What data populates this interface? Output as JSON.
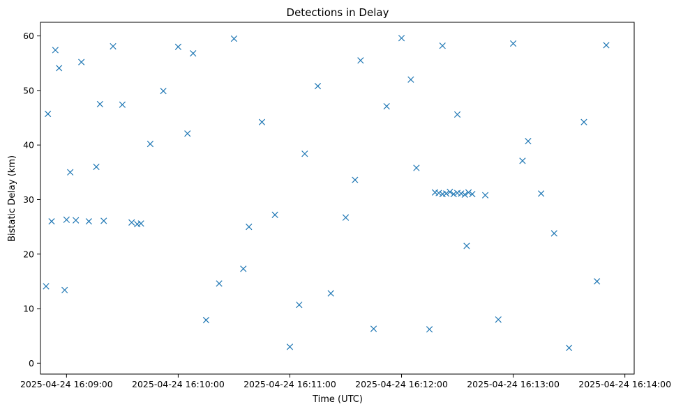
{
  "chart_data": {
    "type": "scatter",
    "title": "Detections in Delay",
    "xlabel": "Time (UTC)",
    "ylabel": "Bistatic Delay (km)",
    "marker": "x",
    "color": "#1f77b4",
    "x_ticks": [
      "2025-04-24 16:09:00",
      "2025-04-24 16:10:00",
      "2025-04-24 16:11:00",
      "2025-04-24 16:12:00",
      "2025-04-24 16:13:00",
      "2025-04-24 16:14:00"
    ],
    "xlim": [
      "2025-04-24 16:08:46",
      "2025-04-24 16:14:05"
    ],
    "y_ticks": [
      0,
      10,
      20,
      30,
      40,
      50,
      60
    ],
    "ylim": [
      -2,
      62.5
    ],
    "grid": false,
    "x": [
      "2025-04-24 16:08:49",
      "2025-04-24 16:08:50",
      "2025-04-24 16:08:52",
      "2025-04-24 16:08:54",
      "2025-04-24 16:08:56",
      "2025-04-24 16:08:59",
      "2025-04-24 16:09:02",
      "2025-04-24 16:09:05",
      "2025-04-24 16:09:08",
      "2025-04-24 16:09:12",
      "2025-04-24 16:09:16",
      "2025-04-24 16:09:20",
      "2025-04-24 16:09:25",
      "2025-04-24 16:09:30",
      "2025-04-24 16:09:35",
      "2025-04-24 16:09:40",
      "2025-04-24 16:09:45",
      "2025-04-24 16:09:52",
      "2025-04-24 16:10:00",
      "2025-04-24 16:10:08",
      "2025-04-24 16:10:15",
      "2025-04-24 16:10:22",
      "2025-04-24 16:10:30",
      "2025-04-24 16:10:38",
      "2025-04-24 16:10:45",
      "2025-04-24 16:10:52",
      "2025-04-24 16:11:00",
      "2025-04-24 16:11:08",
      "2025-04-24 16:11:15",
      "2025-04-24 16:11:22",
      "2025-04-24 16:11:30",
      "2025-04-24 16:11:38",
      "2025-04-24 16:11:45",
      "2025-04-24 16:11:52",
      "2025-04-24 16:12:00",
      "2025-04-24 16:12:08",
      "2025-04-24 16:12:15",
      "2025-04-24 16:12:22",
      "2025-04-24 16:12:30",
      "2025-04-24 16:12:38",
      "2025-04-24 16:12:45",
      "2025-04-24 16:12:52",
      "2025-04-24 16:13:00",
      "2025-04-24 16:13:08",
      "2025-04-24 16:13:15",
      "2025-04-24 16:13:22",
      "2025-04-24 16:13:30",
      "2025-04-24 16:13:38",
      "2025-04-24 16:13:45",
      "2025-04-24 16:13:50",
      "2025-04-24 16:09:00",
      "2025-04-24 16:09:18",
      "2025-04-24 16:09:38",
      "2025-04-24 16:10:05",
      "2025-04-24 16:10:35",
      "2025-04-24 16:11:05",
      "2025-04-24 16:11:35",
      "2025-04-24 16:12:05",
      "2025-04-24 16:12:35",
      "2025-04-24 16:13:05",
      "2025-04-24 16:12:18",
      "2025-04-24 16:12:20",
      "2025-04-24 16:12:22",
      "2025-04-24 16:12:24",
      "2025-04-24 16:12:26",
      "2025-04-24 16:12:28",
      "2025-04-24 16:12:30",
      "2025-04-24 16:12:32",
      "2025-04-24 16:12:34",
      "2025-04-24 16:12:36"
    ],
    "y": [
      14.1,
      45.7,
      26.0,
      57.4,
      54.1,
      13.4,
      35.0,
      26.2,
      55.2,
      26.0,
      36.0,
      26.1,
      58.1,
      47.4,
      25.8,
      25.6,
      40.2,
      49.9,
      58.0,
      56.8,
      7.9,
      14.6,
      59.5,
      25.0,
      44.2,
      27.2,
      3.0,
      38.4,
      50.8,
      12.8,
      26.7,
      55.5,
      6.3,
      47.1,
      59.6,
      35.8,
      6.2,
      58.2,
      45.6,
      31.0,
      30.8,
      8.0,
      58.6,
      40.7,
      31.1,
      23.8,
      2.8,
      44.2,
      15.0,
      58.3,
      26.3,
      47.5,
      25.5,
      42.1,
      17.3,
      10.7,
      33.6,
      52.0,
      21.5,
      37.1,
      31.3,
      31.2,
      31.0,
      31.1,
      31.4,
      31.0,
      31.2,
      31.1,
      30.9,
      31.3
    ]
  }
}
